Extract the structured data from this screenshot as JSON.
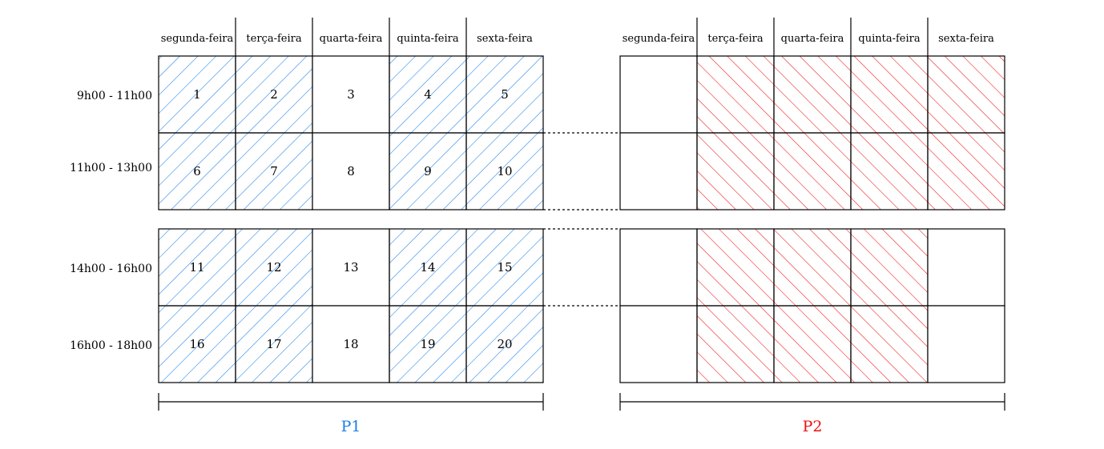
{
  "colors": {
    "p1": "#1a7fe6",
    "p2": "#ee1111",
    "line": "#000000"
  },
  "days": [
    "segunda-feira",
    "terça-feira",
    "quarta-feira",
    "quinta-feira",
    "sexta-feira"
  ],
  "time_slots": [
    "9h00 - 11h00",
    "11h00 - 13h00",
    "14h00 - 16h00",
    "16h00 - 18h00"
  ],
  "p1": {
    "label": "P1",
    "cell_numbers": [
      [
        "1",
        "2",
        "3",
        "4",
        "5"
      ],
      [
        "6",
        "7",
        "8",
        "9",
        "10"
      ],
      [
        "11",
        "12",
        "13",
        "14",
        "15"
      ],
      [
        "16",
        "17",
        "18",
        "19",
        "20"
      ]
    ],
    "hatched": [
      [
        true,
        true,
        false,
        true,
        true
      ],
      [
        true,
        true,
        false,
        true,
        true
      ],
      [
        true,
        true,
        false,
        true,
        true
      ],
      [
        true,
        true,
        false,
        true,
        true
      ]
    ]
  },
  "p2": {
    "label": "P2",
    "hatched": [
      [
        false,
        true,
        true,
        true,
        true
      ],
      [
        false,
        true,
        true,
        true,
        true
      ],
      [
        false,
        true,
        true,
        true,
        false
      ],
      [
        false,
        true,
        true,
        true,
        false
      ]
    ]
  }
}
